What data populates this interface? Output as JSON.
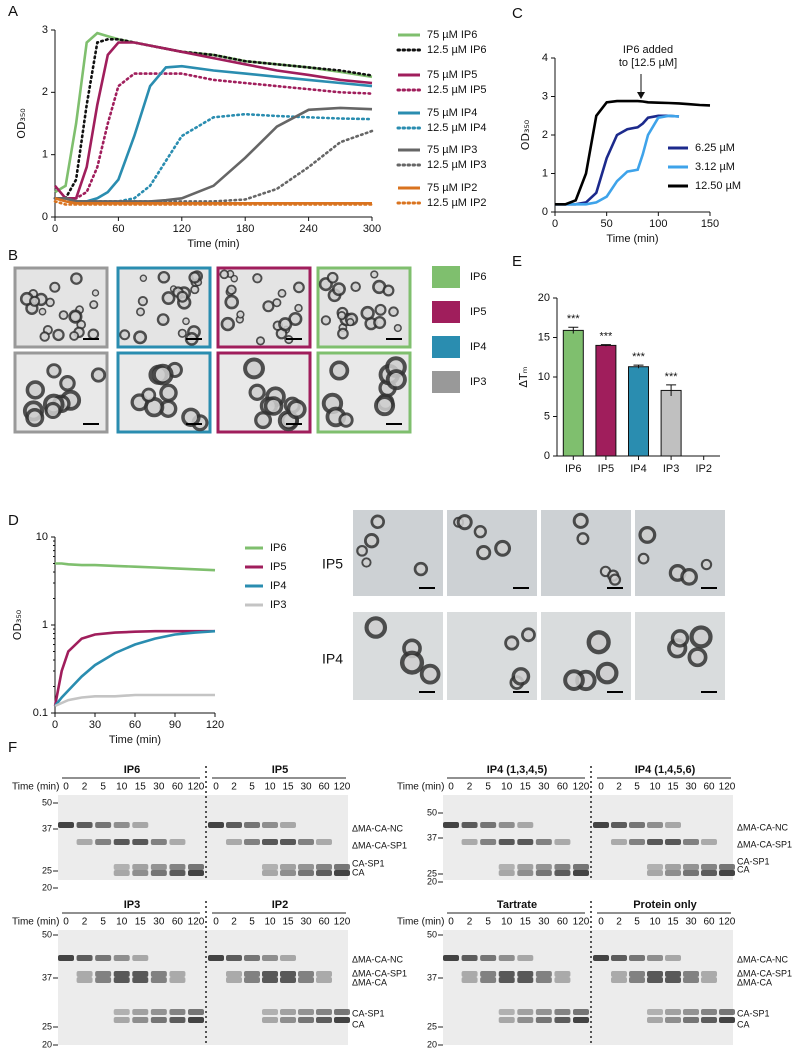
{
  "panel_labels": [
    "A",
    "B",
    "C",
    "D",
    "E",
    "F"
  ],
  "chart_data": [
    {
      "type": "line",
      "xlabel": "Time (min)",
      "ylabel": "OD₃₅₀",
      "x": [
        0,
        10,
        20,
        30,
        40,
        50,
        60,
        75,
        90,
        105,
        120,
        150,
        180,
        210,
        240,
        270,
        300
      ],
      "xlim": [
        0,
        300
      ],
      "xticks": [
        0,
        60,
        120,
        180,
        240,
        300
      ],
      "ylim": [
        0,
        3
      ],
      "yticks": [
        0,
        1,
        2,
        3
      ],
      "series": [
        {
          "name": "75 µM IP6",
          "color": "#7fbf6e",
          "dash": "solid",
          "values": [
            0.4,
            0.5,
            1.5,
            2.8,
            2.95,
            2.9,
            2.85,
            2.8,
            2.75,
            2.7,
            2.65,
            2.6,
            2.5,
            2.45,
            2.4,
            2.33,
            2.25
          ]
        },
        {
          "name": "12.5 µM IP6",
          "color": "#111111",
          "dash": "dotted",
          "values": [
            0.3,
            0.3,
            0.6,
            1.8,
            2.8,
            2.85,
            2.85,
            2.8,
            2.75,
            2.7,
            2.65,
            2.6,
            2.5,
            2.45,
            2.4,
            2.35,
            2.27
          ]
        },
        {
          "name": "75 µM IP5",
          "color": "#a01e5c",
          "dash": "solid",
          "values": [
            0.5,
            0.3,
            0.3,
            0.8,
            1.8,
            2.6,
            2.8,
            2.8,
            2.75,
            2.7,
            2.65,
            2.55,
            2.45,
            2.35,
            2.28,
            2.2,
            2.15
          ]
        },
        {
          "name": "12.5 µM IP5",
          "color": "#a01e5c",
          "dash": "dotted",
          "values": [
            0.3,
            0.3,
            0.3,
            0.4,
            0.8,
            1.5,
            2.1,
            2.3,
            2.3,
            2.3,
            2.3,
            2.2,
            2.15,
            2.1,
            2.05,
            2.0,
            1.98
          ]
        },
        {
          "name": "75 µM IP4",
          "color": "#2a8db0",
          "dash": "solid",
          "values": [
            0.3,
            0.3,
            0.25,
            0.25,
            0.3,
            0.4,
            0.6,
            1.3,
            2.1,
            2.4,
            2.42,
            2.35,
            2.3,
            2.25,
            2.2,
            2.15,
            2.1
          ]
        },
        {
          "name": "12.5 µM IP4",
          "color": "#2a8db0",
          "dash": "dotted",
          "values": [
            0.3,
            0.3,
            0.25,
            0.25,
            0.25,
            0.25,
            0.25,
            0.3,
            0.5,
            0.9,
            1.3,
            1.6,
            1.65,
            1.62,
            1.6,
            1.58,
            1.57
          ]
        },
        {
          "name": "75 µM IP3",
          "color": "#666666",
          "dash": "solid",
          "values": [
            0.3,
            0.3,
            0.25,
            0.25,
            0.25,
            0.25,
            0.25,
            0.25,
            0.25,
            0.27,
            0.3,
            0.5,
            0.95,
            1.45,
            1.72,
            1.75,
            1.73
          ]
        },
        {
          "name": "12.5 µM IP3",
          "color": "#666666",
          "dash": "dotted",
          "values": [
            0.3,
            0.3,
            0.25,
            0.25,
            0.25,
            0.25,
            0.25,
            0.25,
            0.25,
            0.25,
            0.25,
            0.25,
            0.28,
            0.45,
            0.8,
            1.2,
            1.38
          ]
        },
        {
          "name": "75 µM IP2",
          "color": "#d9731f",
          "dash": "solid",
          "values": [
            0.3,
            0.25,
            0.22,
            0.22,
            0.22,
            0.22,
            0.22,
            0.22,
            0.22,
            0.22,
            0.22,
            0.22,
            0.22,
            0.22,
            0.22,
            0.22,
            0.22
          ]
        },
        {
          "name": "12.5 µM IP2",
          "color": "#d9731f",
          "dash": "dotted",
          "values": [
            0.25,
            0.2,
            0.2,
            0.2,
            0.2,
            0.2,
            0.2,
            0.2,
            0.2,
            0.2,
            0.2,
            0.2,
            0.2,
            0.2,
            0.2,
            0.2,
            0.2
          ]
        }
      ]
    },
    {
      "type": "line",
      "xlabel": "Time (min)",
      "ylabel": "OD₃₅₀",
      "annotation": [
        "IP6 added",
        "to [12.5 µM]"
      ],
      "x": [
        0,
        10,
        20,
        30,
        40,
        50,
        60,
        70,
        80,
        85,
        90,
        100,
        110,
        120,
        130,
        140,
        150
      ],
      "xlim": [
        0,
        150
      ],
      "xticks": [
        0,
        50,
        100,
        150
      ],
      "ylim": [
        0,
        4
      ],
      "yticks": [
        0,
        1,
        2,
        3,
        4
      ],
      "series": [
        {
          "name": "6.25 µM",
          "color": "#1c2a8c",
          "dash": "solid",
          "values": [
            0.2,
            0.2,
            0.2,
            0.25,
            0.5,
            1.4,
            2.0,
            2.15,
            2.2,
            2.3,
            2.45,
            2.5,
            2.5,
            2.48,
            null,
            null,
            null
          ]
        },
        {
          "name": "3.12 µM",
          "color": "#3ea3ea",
          "dash": "solid",
          "values": [
            0.2,
            0.2,
            0.2,
            0.2,
            0.25,
            0.4,
            0.8,
            1.05,
            1.1,
            1.5,
            2.0,
            2.45,
            2.5,
            2.48,
            null,
            null,
            null
          ]
        },
        {
          "name": "12.50 µM",
          "color": "#000000",
          "dash": "solid",
          "values": [
            0.2,
            0.2,
            0.3,
            1.0,
            2.5,
            2.85,
            2.88,
            2.88,
            2.88,
            2.87,
            2.85,
            2.84,
            2.83,
            2.82,
            2.8,
            2.78,
            2.77
          ]
        }
      ]
    },
    {
      "type": "bar",
      "ylabel": "ΔTₘ",
      "categories": [
        "IP6",
        "IP5",
        "IP4",
        "IP3",
        "IP2"
      ],
      "values": [
        15.9,
        14.0,
        11.3,
        8.3,
        null
      ],
      "errors": [
        0.4,
        0.1,
        0.2,
        0.7,
        null
      ],
      "annotations": [
        "***",
        "***",
        "***",
        "***",
        null
      ],
      "colors": [
        "#7fbf6e",
        "#a01e5c",
        "#2a8db0",
        "#c0c0c0",
        "#c0c0c0"
      ],
      "ylim": [
        0,
        20
      ],
      "yticks": [
        0,
        5,
        10,
        15,
        20
      ]
    },
    {
      "type": "line",
      "xlabel": "Time (min)",
      "ylabel": "OD₃₅₀",
      "log_y": true,
      "x": [
        0,
        5,
        10,
        20,
        30,
        45,
        60,
        75,
        90,
        105,
        120
      ],
      "xlim": [
        0,
        120
      ],
      "xticks": [
        0,
        30,
        60,
        90,
        120
      ],
      "ylim": [
        0.1,
        10
      ],
      "yticks": [
        0.1,
        1,
        10
      ],
      "series": [
        {
          "name": "IP6",
          "color": "#7fbf6e",
          "dash": "solid",
          "values": [
            5,
            5,
            4.9,
            4.8,
            4.8,
            4.7,
            4.6,
            4.5,
            4.4,
            4.3,
            4.2
          ]
        },
        {
          "name": "IP5",
          "color": "#a01e5c",
          "dash": "solid",
          "values": [
            0.12,
            0.3,
            0.5,
            0.7,
            0.78,
            0.82,
            0.84,
            0.85,
            0.85,
            0.85,
            0.85
          ]
        },
        {
          "name": "IP4",
          "color": "#2a8db0",
          "dash": "solid",
          "values": [
            0.12,
            0.15,
            0.18,
            0.26,
            0.35,
            0.48,
            0.6,
            0.7,
            0.78,
            0.82,
            0.85
          ]
        },
        {
          "name": "IP3",
          "color": "#c4c4c4",
          "dash": "solid",
          "values": [
            0.12,
            0.13,
            0.14,
            0.15,
            0.155,
            0.155,
            0.16,
            0.16,
            0.16,
            0.16,
            0.16
          ]
        }
      ]
    }
  ],
  "micrographs": {
    "legend": [
      {
        "label": "IP6",
        "color": "#7fbf6e"
      },
      {
        "label": "IP5",
        "color": "#a01e5c"
      },
      {
        "label": "IP4",
        "color": "#2a8db0"
      },
      {
        "label": "IP3",
        "color": "#999999"
      }
    ],
    "row_labels": [
      "IP5",
      "IP4"
    ]
  },
  "gels": {
    "time_label": "Time (min)",
    "times": [
      "0",
      "2",
      "5",
      "10",
      "15",
      "30",
      "60",
      "120"
    ],
    "blocks": [
      {
        "titles": [
          "IP6",
          "IP5"
        ],
        "markers": [
          "50",
          "37",
          "25",
          "20"
        ],
        "bands": [
          "ΔMA-CA-NC",
          "ΔMA-CA-SP1",
          "CA-SP1",
          "CA"
        ]
      },
      {
        "titles": [
          "IP4 (1,3,4,5)",
          "IP4 (1,4,5,6)"
        ],
        "markers": [
          "50",
          "37",
          "25",
          "20"
        ],
        "bands": [
          "ΔMA-CA-NC",
          "ΔMA-CA-SP1",
          "CA-SP1",
          "CA"
        ]
      },
      {
        "titles": [
          "IP3",
          "IP2"
        ],
        "markers": [
          "50",
          "37",
          "25",
          "20"
        ],
        "bands": [
          "ΔMA-CA-NC",
          "ΔMA-CA-SP1",
          "ΔMA-CA",
          "CA-SP1",
          "CA"
        ]
      },
      {
        "titles": [
          "Tartrate",
          "Protein only"
        ],
        "markers": [
          "50",
          "37",
          "25",
          "20"
        ],
        "bands": [
          "ΔMA-CA-NC",
          "ΔMA-CA-SP1",
          "ΔMA-CA",
          "CA-SP1",
          "CA"
        ]
      }
    ]
  }
}
